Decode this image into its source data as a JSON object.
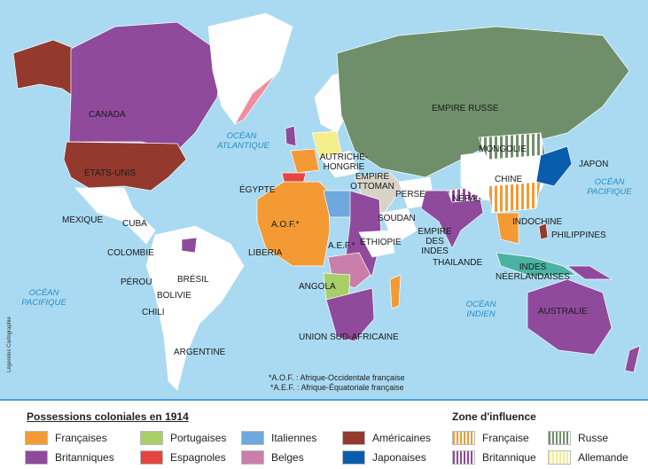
{
  "map": {
    "labels": {
      "canada": "CANADA",
      "usa": "ÉTATS-UNIS",
      "mexique": "MEXIQUE",
      "cuba": "CUBA",
      "colombie": "COLOMBIE",
      "perou": "PÉROU",
      "bresil": "BRÉSIL",
      "bolivie": "BOLIVIE",
      "chili": "CHILI",
      "argentine": "ARGENTINE",
      "autriche": "AUTRICHE-HONGRIE",
      "ottoman": "EMPIRE OTTOMAN",
      "egypte": "ÉGYPTE",
      "perse": "PERSE",
      "soudan": "SOUDAN",
      "aof": "A.O.F.*",
      "aef": "A.E.F.*",
      "liberia": "LIBERIA",
      "ethiopie": "ÉTHIOPIE",
      "angola": "ANGOLA",
      "union": "UNION SUD-AFRICAINE",
      "russie": "EMPIRE RUSSE",
      "mongolie": "MONGOLIE",
      "chine": "CHINE",
      "nepal": "NÉPAL",
      "japon": "JAPON",
      "indochine": "INDOCHINE",
      "philippines": "PHILIPPINES",
      "indes": "EMPIRE DES INDES",
      "thailande": "THAILANDE",
      "indes_neer": "INDES NÉERLANDAISES",
      "australie": "AUSTRALIE"
    },
    "oceans": {
      "atlantique": "OCÉAN ATLANTIQUE",
      "pacifique_e": "OCÉAN PACIFIQUE",
      "pacifique_w": "OCÉAN PACIFIQUE",
      "indien": "OCÉAN INDIEN"
    },
    "notes": [
      "*A.O.F. : Afrique-Occidentale française",
      "*A.E.F. : Afrique-Équatoriale française"
    ],
    "credit": "Légendes Cartographie"
  },
  "legend": {
    "possessions_title": "Possessions coloniales en 1914",
    "zone_title": "Zone d'influence",
    "possessions": [
      {
        "label": "Françaises",
        "color": "#f39a35"
      },
      {
        "label": "Britanniques",
        "color": "#8f4a9c"
      },
      {
        "label": "Portugaises",
        "color": "#a8cf6a"
      },
      {
        "label": "Espagnoles",
        "color": "#e5453f"
      },
      {
        "label": "Italiennes",
        "color": "#6ea8dc"
      },
      {
        "label": "Belges",
        "color": "#c97fa9"
      },
      {
        "label": "Américaines",
        "color": "#93392e"
      },
      {
        "label": "Japonaises",
        "color": "#0a5cad"
      }
    ],
    "zones": [
      {
        "label": "Française",
        "color": "#f39a35"
      },
      {
        "label": "Britannique",
        "color": "#8f4a9c"
      },
      {
        "label": "Russe",
        "color": "#6f8f6a"
      },
      {
        "label": "Allemande",
        "color": "#f4ee8c"
      }
    ]
  }
}
